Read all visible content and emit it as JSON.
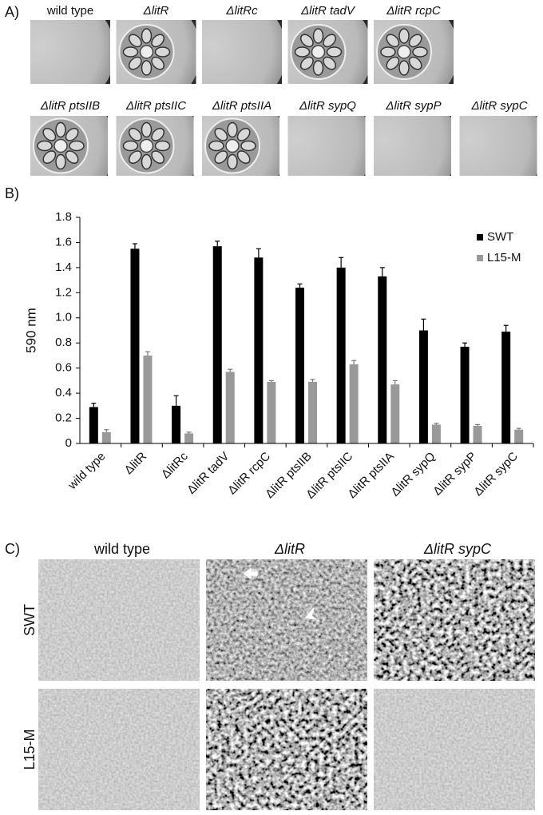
{
  "panel_labels": [
    "A)",
    "B)",
    "C)"
  ],
  "panel_a": {
    "row1": [
      "wild type",
      "ΔlitR",
      "ΔlitRc",
      "ΔlitR tadV",
      "ΔlitR rcpC"
    ],
    "row2": [
      "ΔlitR ptsIIB",
      "ΔlitR ptsIIC",
      "ΔlitR ptsIIA",
      "ΔlitR sypQ",
      "ΔlitR sypP",
      "ΔlitR sypC"
    ]
  },
  "chart_data": {
    "type": "bar",
    "ylabel": "590 nm",
    "categories": [
      "wild type",
      "ΔlitR",
      "ΔlitRc",
      "ΔlitR tadV",
      "ΔlitR rcpC",
      "ΔlitR ptsIIB",
      "ΔlitR ptsIIC",
      "ΔlitR ptsIIA",
      "ΔlitR sypQ",
      "ΔlitR sypP",
      "ΔlitR sypC"
    ],
    "series": [
      {
        "name": "SWT",
        "color": "#000000",
        "values": [
          0.29,
          1.55,
          0.3,
          1.57,
          1.48,
          1.24,
          1.4,
          1.33,
          0.9,
          0.77,
          0.89
        ],
        "errors": [
          0.03,
          0.04,
          0.08,
          0.04,
          0.07,
          0.03,
          0.08,
          0.07,
          0.09,
          0.03,
          0.05
        ]
      },
      {
        "name": "L15-M",
        "color": "#999999",
        "values": [
          0.09,
          0.7,
          0.08,
          0.57,
          0.49,
          0.49,
          0.63,
          0.47,
          0.15,
          0.14,
          0.11
        ],
        "errors": [
          0.02,
          0.03,
          0.01,
          0.02,
          0.01,
          0.02,
          0.03,
          0.03,
          0.01,
          0.01,
          0.01
        ]
      }
    ],
    "ylim": [
      0,
      1.8
    ],
    "yticks": [
      0,
      0.2,
      0.4,
      0.6,
      0.8,
      {
        "value": 1,
        "label": "1.0"
      },
      1.2,
      1.4,
      1.6,
      1.8
    ],
    "legend": "upper right"
  },
  "panel_c": {
    "columns": [
      "wild type",
      "ΔlitR",
      "ΔlitR sypC"
    ],
    "rows": [
      "SWT",
      "L15-M"
    ]
  }
}
